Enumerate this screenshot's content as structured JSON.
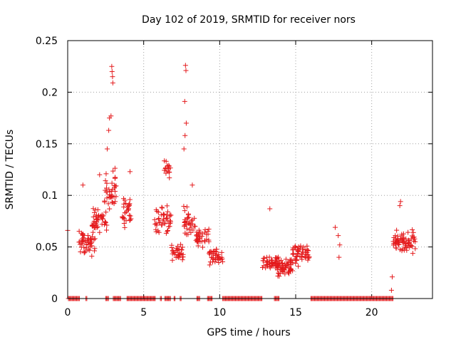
{
  "chart_data": {
    "type": "scatter",
    "title": "Day 102 of 2019, SRMTID for receiver nors",
    "xlabel": "GPS time / hours",
    "ylabel": "SRMTID / TECUs",
    "xlim": [
      0,
      24
    ],
    "ylim": [
      0,
      0.25
    ],
    "xticks": [
      0,
      5,
      10,
      15,
      20
    ],
    "xtick_labels": [
      "0",
      "5",
      "10",
      "15",
      "20"
    ],
    "yticks": [
      0,
      0.05,
      0.1,
      0.15,
      0.2,
      0.25
    ],
    "ytick_labels": [
      "0",
      "0.05",
      "0.1",
      "0.15",
      "0.2",
      "0.25"
    ],
    "grid": true,
    "marker": "+",
    "color": "#e41a1c",
    "series": [
      {
        "name": "SRMTID",
        "clusters": [
          {
            "x_start": 0.7,
            "x_end": 1.8,
            "y_center": 0.055,
            "y_spread": 0.015,
            "n": 50
          },
          {
            "x_start": 1.6,
            "x_end": 2.6,
            "y_center": 0.075,
            "y_spread": 0.015,
            "n": 45
          },
          {
            "x_start": 2.4,
            "x_end": 3.2,
            "y_center": 0.105,
            "y_spread": 0.025,
            "n": 40
          },
          {
            "x_start": 3.6,
            "x_end": 4.2,
            "y_center": 0.085,
            "y_spread": 0.02,
            "n": 30
          },
          {
            "x_start": 5.7,
            "x_end": 6.8,
            "y_center": 0.075,
            "y_spread": 0.02,
            "n": 45
          },
          {
            "x_start": 6.3,
            "x_end": 6.8,
            "y_center": 0.125,
            "y_spread": 0.01,
            "n": 15
          },
          {
            "x_start": 6.8,
            "x_end": 7.6,
            "y_center": 0.045,
            "y_spread": 0.012,
            "n": 35
          },
          {
            "x_start": 7.6,
            "x_end": 8.4,
            "y_center": 0.075,
            "y_spread": 0.02,
            "n": 35
          },
          {
            "x_start": 8.4,
            "x_end": 9.3,
            "y_center": 0.06,
            "y_spread": 0.015,
            "n": 35
          },
          {
            "x_start": 9.3,
            "x_end": 10.2,
            "y_center": 0.04,
            "y_spread": 0.012,
            "n": 40
          },
          {
            "x_start": 12.8,
            "x_end": 13.8,
            "y_center": 0.035,
            "y_spread": 0.01,
            "n": 45
          },
          {
            "x_start": 13.8,
            "x_end": 14.8,
            "y_center": 0.03,
            "y_spread": 0.012,
            "n": 60
          },
          {
            "x_start": 14.8,
            "x_end": 15.9,
            "y_center": 0.045,
            "y_spread": 0.015,
            "n": 55
          },
          {
            "x_start": 21.4,
            "x_end": 22.9,
            "y_center": 0.055,
            "y_spread": 0.015,
            "n": 70
          }
        ],
        "points": [
          {
            "x": 0.0,
            "y": 0.066
          },
          {
            "x": 1.0,
            "y": 0.11
          },
          {
            "x": 2.1,
            "y": 0.12
          },
          {
            "x": 2.7,
            "y": 0.163
          },
          {
            "x": 2.75,
            "y": 0.175
          },
          {
            "x": 2.9,
            "y": 0.225
          },
          {
            "x": 2.92,
            "y": 0.22
          },
          {
            "x": 2.95,
            "y": 0.215
          },
          {
            "x": 2.97,
            "y": 0.209
          },
          {
            "x": 2.85,
            "y": 0.177
          },
          {
            "x": 2.6,
            "y": 0.145
          },
          {
            "x": 4.1,
            "y": 0.123
          },
          {
            "x": 7.75,
            "y": 0.226
          },
          {
            "x": 7.78,
            "y": 0.221
          },
          {
            "x": 7.7,
            "y": 0.191
          },
          {
            "x": 7.8,
            "y": 0.17
          },
          {
            "x": 7.72,
            "y": 0.158
          },
          {
            "x": 7.65,
            "y": 0.145
          },
          {
            "x": 8.2,
            "y": 0.11
          },
          {
            "x": 13.3,
            "y": 0.087
          },
          {
            "x": 17.6,
            "y": 0.069
          },
          {
            "x": 17.8,
            "y": 0.061
          },
          {
            "x": 17.9,
            "y": 0.052
          },
          {
            "x": 17.85,
            "y": 0.04
          },
          {
            "x": 21.3,
            "y": 0.008
          },
          {
            "x": 21.35,
            "y": 0.021
          },
          {
            "x": 21.9,
            "y": 0.094
          },
          {
            "x": 21.85,
            "y": 0.09
          }
        ]
      },
      {
        "name": "zero-level",
        "y": 0,
        "x_ranges": [
          [
            0.05,
            0.8
          ],
          [
            1.2,
            1.3
          ],
          [
            2.5,
            2.7
          ],
          [
            3.0,
            3.5
          ],
          [
            3.9,
            5.8
          ],
          [
            6.1,
            6.2
          ],
          [
            6.4,
            6.8
          ],
          [
            7.0,
            7.1
          ],
          [
            7.4,
            7.5
          ],
          [
            8.5,
            8.7
          ],
          [
            9.2,
            9.5
          ],
          [
            10.2,
            12.8
          ],
          [
            13.6,
            13.9
          ],
          [
            16.0,
            21.4
          ]
        ]
      }
    ]
  }
}
